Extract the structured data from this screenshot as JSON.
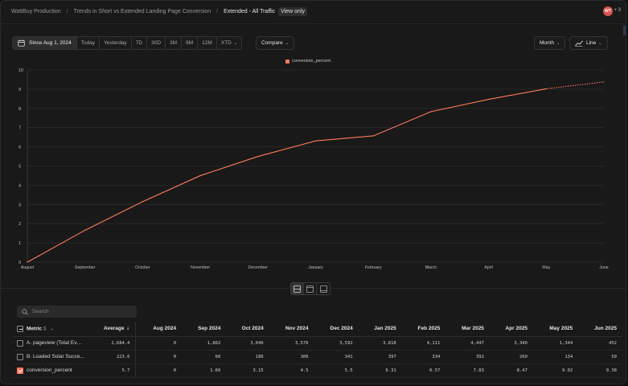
{
  "breadcrumb": {
    "org": "WattBuy Production",
    "dashboard": "Trends in Short vs Extended Landing Page Conversion",
    "insight": "Extended - All Traffic",
    "badge": "View only"
  },
  "user": {
    "initials": "WT",
    "extra": "+ 3"
  },
  "date_range": {
    "active": "Since Aug 1, 2024",
    "options": [
      "Today",
      "Yesterday",
      "7D",
      "30D",
      "3M",
      "6M",
      "12M",
      "XTD"
    ]
  },
  "controls": {
    "compare": "Compare",
    "interval": "Month",
    "chart_type": "Line"
  },
  "colors": {
    "series": "#ff7a5c",
    "background": "#191919"
  },
  "chart_data": {
    "type": "line",
    "title": "",
    "legend": [
      "conversion_percent"
    ],
    "legend_position": "top-center",
    "x": [
      "August",
      "September",
      "October",
      "November",
      "December",
      "January",
      "February",
      "March",
      "April",
      "May",
      "June"
    ],
    "series": [
      {
        "name": "conversion_percent",
        "values": [
          0,
          1.66,
          3.15,
          4.5,
          5.5,
          6.31,
          6.57,
          7.83,
          8.47,
          9.02,
          9.38
        ],
        "incomplete_from_index": 9
      }
    ],
    "y_ticks": [
      "0",
      "1",
      "2",
      "3",
      "4",
      "5",
      "6",
      "7",
      "8",
      "9",
      "10"
    ],
    "ylim": [
      0,
      10
    ],
    "grid": true
  },
  "search": {
    "placeholder": "Search"
  },
  "table": {
    "metric_header": "Metric",
    "metric_sort": "$",
    "average_header": "Average",
    "months": [
      "Aug 2024",
      "Sep 2024",
      "Oct 2024",
      "Nov 2024",
      "Dec 2024",
      "Jan 2025",
      "Feb 2025",
      "Mar 2025",
      "Apr 2025",
      "May 2025",
      "Jun 2025"
    ],
    "rows": [
      {
        "label": "A. pageview (Total Even...",
        "checked": false,
        "average": "2,684.4",
        "values": [
          "0",
          "1,802",
          "3,046",
          "3,576",
          "3,592",
          "3,818",
          "4,111",
          "4,447",
          "3,340",
          "1,344",
          "452"
        ]
      },
      {
        "label": "B. Loaded Solar Succe...",
        "checked": false,
        "average": "223.6",
        "values": [
          "0",
          "60",
          "186",
          "306",
          "341",
          "397",
          "334",
          "392",
          "260",
          "134",
          "50"
        ]
      },
      {
        "label": "conversion_percent",
        "checked": true,
        "average": "5.7",
        "values": [
          "0",
          "1.66",
          "3.15",
          "4.5",
          "5.5",
          "6.31",
          "6.57",
          "7.83",
          "8.47",
          "9.02",
          "9.38"
        ]
      }
    ]
  }
}
